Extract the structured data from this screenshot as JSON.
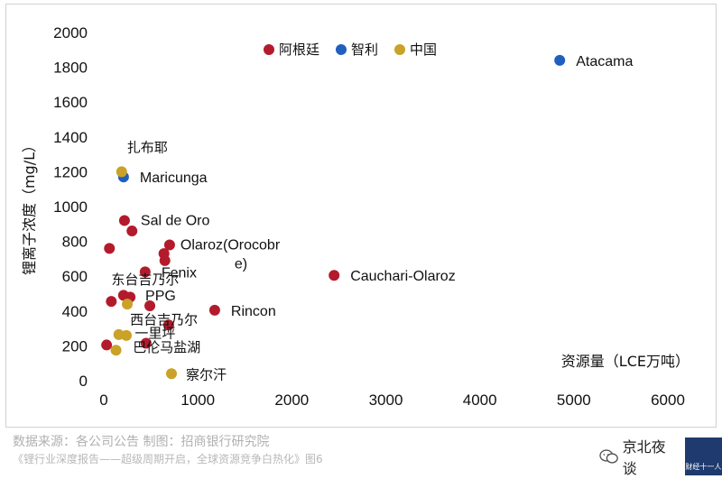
{
  "chart_data": {
    "type": "scatter",
    "xlabel": "资源量（LCE万吨）",
    "ylabel": "锂离子浓度（mg/L）",
    "xlim": [
      0,
      6000
    ],
    "ylim": [
      0,
      2000
    ],
    "x_ticks": [
      "0",
      "1000",
      "2000",
      "3000",
      "4000",
      "5000",
      "6000"
    ],
    "y_ticks": [
      "0",
      "200",
      "400",
      "600",
      "800",
      "1000",
      "1200",
      "1400",
      "1600",
      "1800",
      "2000"
    ],
    "legend_position": "top",
    "series": [
      {
        "name": "阿根廷",
        "color": "#b31b2c",
        "points": [
          {
            "x": 220,
            "y": 920,
            "label": "Sal de Oro"
          },
          {
            "x": 300,
            "y": 860,
            "label": ""
          },
          {
            "x": 60,
            "y": 760,
            "label": ""
          },
          {
            "x": 700,
            "y": 780,
            "label": "Olaroz(Orocobre)"
          },
          {
            "x": 640,
            "y": 730,
            "label": ""
          },
          {
            "x": 650,
            "y": 690,
            "label": ""
          },
          {
            "x": 440,
            "y": 625,
            "label": "Fenix"
          },
          {
            "x": 2450,
            "y": 605,
            "label": "Cauchari-Olaroz"
          },
          {
            "x": 80,
            "y": 455,
            "label": ""
          },
          {
            "x": 210,
            "y": 490,
            "label": ""
          },
          {
            "x": 280,
            "y": 480,
            "label": ""
          },
          {
            "x": 490,
            "y": 430,
            "label": ""
          },
          {
            "x": 1180,
            "y": 405,
            "label": "Rincon"
          },
          {
            "x": 690,
            "y": 320,
            "label": ""
          },
          {
            "x": 30,
            "y": 205,
            "label": ""
          },
          {
            "x": 450,
            "y": 215,
            "label": ""
          }
        ]
      },
      {
        "name": "智利",
        "color": "#1f5fbf",
        "points": [
          {
            "x": 4850,
            "y": 1840,
            "label": "Atacama"
          },
          {
            "x": 210,
            "y": 1170,
            "label": "Maricunga"
          }
        ]
      },
      {
        "name": "中国",
        "color": "#c9a227",
        "points": [
          {
            "x": 190,
            "y": 1200,
            "label": "扎布耶"
          },
          {
            "x": 250,
            "y": 440,
            "label": "PPG"
          },
          {
            "x": 160,
            "y": 265,
            "label": ""
          },
          {
            "x": 240,
            "y": 260,
            "label": ""
          },
          {
            "x": 130,
            "y": 175,
            "label": ""
          },
          {
            "x": 720,
            "y": 40,
            "label": "察尔汗"
          }
        ]
      }
    ],
    "annotations": [
      {
        "text": "东台吉乃尔",
        "x": 80,
        "y": 555
      },
      {
        "text": "西台吉乃尔",
        "x": 280,
        "y": 325
      },
      {
        "text": "一里坪",
        "x": 330,
        "y": 245
      },
      {
        "text": "巴伦马盐湖",
        "x": 310,
        "y": 165
      }
    ]
  },
  "footer": {
    "source": "数据来源：各公司公告 制图：招商银行研究院",
    "citation": "《锂行业深度报告——超级周期开启，全球资源竞争白热化》图6",
    "brand": "京北夜谈",
    "badge": "财经十一人"
  }
}
